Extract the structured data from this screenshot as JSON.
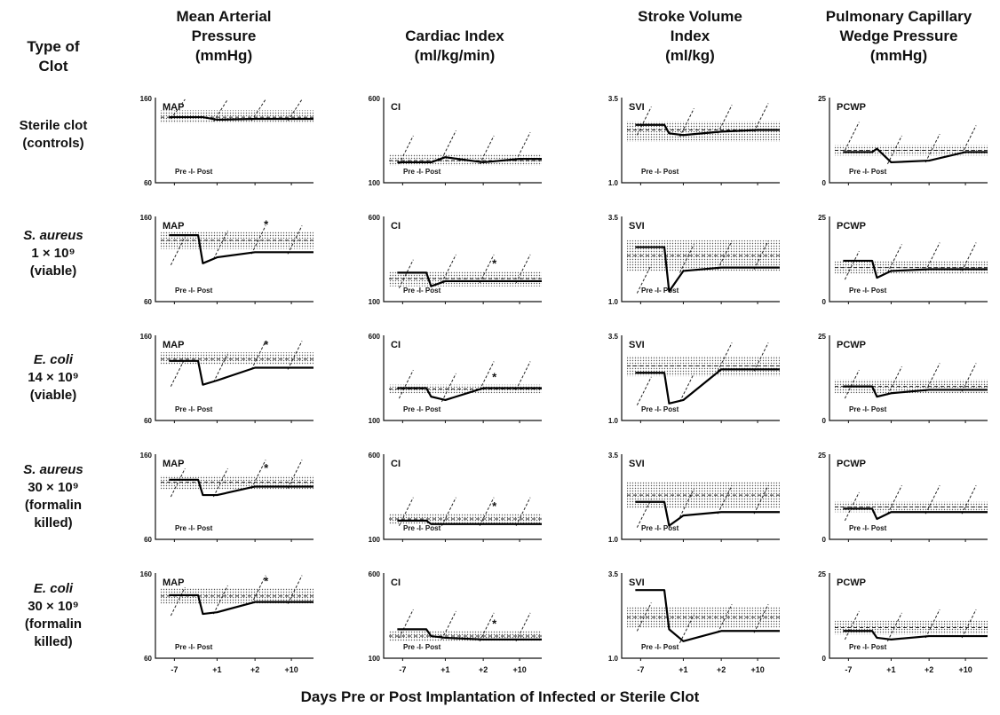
{
  "type_header": [
    "Type of",
    "Clot"
  ],
  "columns": [
    {
      "title_lines": [
        "Mean Arterial",
        "Pressure",
        "(mmHg)"
      ],
      "abbr": "MAP",
      "ylim": [
        60,
        160
      ],
      "tick_labels": [
        "160",
        "60"
      ]
    },
    {
      "title_lines": [
        "Cardiac Index",
        "(ml/kg/min)"
      ],
      "abbr": "CI",
      "ylim": [
        100,
        600
      ],
      "tick_labels": [
        "600",
        "100"
      ]
    },
    {
      "title_lines": [
        "Stroke Volume",
        "Index",
        "(ml/kg)"
      ],
      "abbr": "SVI",
      "ylim": [
        1.0,
        3.5
      ],
      "tick_labels": [
        "3.5",
        "1.0"
      ]
    },
    {
      "title_lines": [
        "Pulmonary Capillary",
        "Wedge Pressure",
        "(mmHg)"
      ],
      "abbr": "PCWP",
      "ylim": [
        0,
        25
      ],
      "tick_labels": [
        "25",
        "0"
      ]
    }
  ],
  "rows": [
    {
      "label_lines": [
        {
          "text": "Sterile clot",
          "italic": false
        },
        {
          "text": "(controls)",
          "italic": false
        }
      ]
    },
    {
      "label_lines": [
        {
          "text": "S. aureus",
          "italic": true
        },
        {
          "text": "1 × 10⁹",
          "italic": false
        },
        {
          "text": "(viable)",
          "italic": false
        }
      ]
    },
    {
      "label_lines": [
        {
          "text": "E. coli",
          "italic": true
        },
        {
          "text": "14 × 10⁹",
          "italic": false
        },
        {
          "text": "(viable)",
          "italic": false
        }
      ]
    },
    {
      "label_lines": [
        {
          "text": "S. aureus",
          "italic": true
        },
        {
          "text": "30 × 10⁹",
          "italic": false
        },
        {
          "text": "(formalin",
          "italic": false
        },
        {
          "text": "killed)",
          "italic": false
        }
      ]
    },
    {
      "label_lines": [
        {
          "text": "E. coli",
          "italic": true
        },
        {
          "text": "30 × 10⁹",
          "italic": false
        },
        {
          "text": "(formalin",
          "italic": false
        },
        {
          "text": "killed)",
          "italic": false
        }
      ]
    }
  ],
  "pre_post_label": "Pre -I- Post",
  "asterisk": "*",
  "x_tick_labels": [
    "-7",
    "+1",
    "+2",
    "+10"
  ],
  "xlabel": "Days Pre or Post Implantation of Infected or Sterile Clot",
  "chart_data": {
    "type": "line",
    "title": "",
    "xlabel": "Days Pre or Post Implantation of Infected or Sterile Clot",
    "x": [
      "-7",
      "+1",
      "+2",
      "+10"
    ],
    "description_note": "",
    "panels": [
      {
        "row": 0,
        "col": 0,
        "ylabel": "MAP",
        "ylim": [
          60,
          160
        ],
        "pre": 137,
        "series": [
          137,
          134,
          135,
          135
        ],
        "normal_band": [
          130,
          145
        ],
        "normal_mean": 137,
        "asterisk_index": null
      },
      {
        "row": 0,
        "col": 1,
        "ylabel": "CI",
        "ylim": [
          100,
          600
        ],
        "pre": 220,
        "series": [
          220,
          250,
          220,
          240
        ],
        "normal_band": [
          200,
          270
        ],
        "normal_mean": 230,
        "asterisk_index": null
      },
      {
        "row": 0,
        "col": 2,
        "ylabel": "SVI",
        "ylim": [
          1.0,
          3.5
        ],
        "pre": 2.7,
        "series": [
          2.45,
          2.4,
          2.5,
          2.55
        ],
        "normal_band": [
          2.2,
          2.8
        ],
        "normal_mean": 2.55,
        "asterisk_index": null
      },
      {
        "row": 0,
        "col": 3,
        "ylabel": "PCWP",
        "ylim": [
          0,
          25
        ],
        "pre": 9,
        "series": [
          10,
          6,
          6.5,
          9
        ],
        "normal_band": [
          8,
          11
        ],
        "normal_mean": 9.5,
        "asterisk_index": null
      },
      {
        "row": 1,
        "col": 0,
        "ylabel": "MAP",
        "ylim": [
          60,
          160
        ],
        "pre": 138,
        "series": [
          105,
          112,
          118,
          118
        ],
        "normal_band": [
          122,
          142
        ],
        "normal_mean": 132,
        "asterisk_index": 2
      },
      {
        "row": 1,
        "col": 1,
        "ylabel": "CI",
        "ylim": [
          100,
          600
        ],
        "pre": 270,
        "series": [
          190,
          220,
          220,
          220
        ],
        "normal_band": [
          190,
          280
        ],
        "normal_mean": 235,
        "asterisk_index": 2
      },
      {
        "row": 1,
        "col": 2,
        "ylabel": "SVI",
        "ylim": [
          1.0,
          3.5
        ],
        "pre": 2.6,
        "series": [
          1.3,
          1.9,
          2.0,
          2.0
        ],
        "normal_band": [
          1.9,
          2.8
        ],
        "normal_mean": 2.35,
        "asterisk_index": null
      },
      {
        "row": 1,
        "col": 3,
        "ylabel": "PCWP",
        "ylim": [
          0,
          25
        ],
        "pre": 12,
        "series": [
          7,
          9,
          9.5,
          9.5
        ],
        "normal_band": [
          8,
          12
        ],
        "normal_mean": 10,
        "asterisk_index": null
      },
      {
        "row": 2,
        "col": 0,
        "ylabel": "MAP",
        "ylim": [
          60,
          160
        ],
        "pre": 130,
        "series": [
          102,
          107,
          122,
          122
        ],
        "normal_band": [
          126,
          140
        ],
        "normal_mean": 132,
        "asterisk_index": 2
      },
      {
        "row": 2,
        "col": 1,
        "ylabel": "CI",
        "ylim": [
          100,
          600
        ],
        "pre": 290,
        "series": [
          240,
          220,
          290,
          290
        ],
        "normal_band": [
          260,
          310
        ],
        "normal_mean": 285,
        "asterisk_index": 2
      },
      {
        "row": 2,
        "col": 2,
        "ylabel": "SVI",
        "ylim": [
          1.0,
          3.5
        ],
        "pre": 2.4,
        "series": [
          1.5,
          1.6,
          2.5,
          2.5
        ],
        "normal_band": [
          2.3,
          2.9
        ],
        "normal_mean": 2.6,
        "asterisk_index": null
      },
      {
        "row": 2,
        "col": 3,
        "ylabel": "PCWP",
        "ylim": [
          0,
          25
        ],
        "pre": 10,
        "series": [
          7,
          8,
          9,
          9
        ],
        "normal_band": [
          8,
          12
        ],
        "normal_mean": 10,
        "asterisk_index": null
      },
      {
        "row": 3,
        "col": 0,
        "ylabel": "MAP",
        "ylim": [
          60,
          160
        ],
        "pre": 130,
        "series": [
          112,
          112,
          122,
          122
        ],
        "normal_band": [
          118,
          135
        ],
        "normal_mean": 127,
        "asterisk_index": 2
      },
      {
        "row": 3,
        "col": 1,
        "ylabel": "CI",
        "ylim": [
          100,
          600
        ],
        "pre": 210,
        "series": [
          190,
          190,
          190,
          190
        ],
        "normal_band": [
          190,
          250
        ],
        "normal_mean": 220,
        "asterisk_index": 2
      },
      {
        "row": 3,
        "col": 2,
        "ylabel": "SVI",
        "ylim": [
          1.0,
          3.5
        ],
        "pre": 2.1,
        "series": [
          1.4,
          1.7,
          1.8,
          1.8
        ],
        "normal_band": [
          1.9,
          2.7
        ],
        "normal_mean": 2.3,
        "asterisk_index": null
      },
      {
        "row": 3,
        "col": 3,
        "ylabel": "PCWP",
        "ylim": [
          0,
          25
        ],
        "pre": 9,
        "series": [
          6,
          8,
          8,
          8
        ],
        "normal_band": [
          8,
          11
        ],
        "normal_mean": 9.5,
        "asterisk_index": null
      },
      {
        "row": 4,
        "col": 0,
        "ylabel": "MAP",
        "ylim": [
          60,
          160
        ],
        "pre": 134,
        "series": [
          112,
          114,
          126,
          126
        ],
        "normal_band": [
          124,
          142
        ],
        "normal_mean": 133,
        "asterisk_index": 2
      },
      {
        "row": 4,
        "col": 1,
        "ylabel": "CI",
        "ylim": [
          100,
          600
        ],
        "pre": 270,
        "series": [
          230,
          220,
          210,
          210
        ],
        "normal_band": [
          200,
          260
        ],
        "normal_mean": 230,
        "asterisk_index": 2
      },
      {
        "row": 4,
        "col": 2,
        "ylabel": "SVI",
        "ylim": [
          1.0,
          3.5
        ],
        "pre": 3.0,
        "series": [
          1.85,
          1.5,
          1.8,
          1.8
        ],
        "normal_band": [
          1.9,
          2.5
        ],
        "normal_mean": 2.2,
        "asterisk_index": null
      },
      {
        "row": 4,
        "col": 3,
        "ylabel": "PCWP",
        "ylim": [
          0,
          25
        ],
        "pre": 8,
        "series": [
          6,
          5.5,
          6.5,
          6.5
        ],
        "normal_band": [
          7,
          11
        ],
        "normal_mean": 9,
        "asterisk_index": null
      }
    ]
  }
}
